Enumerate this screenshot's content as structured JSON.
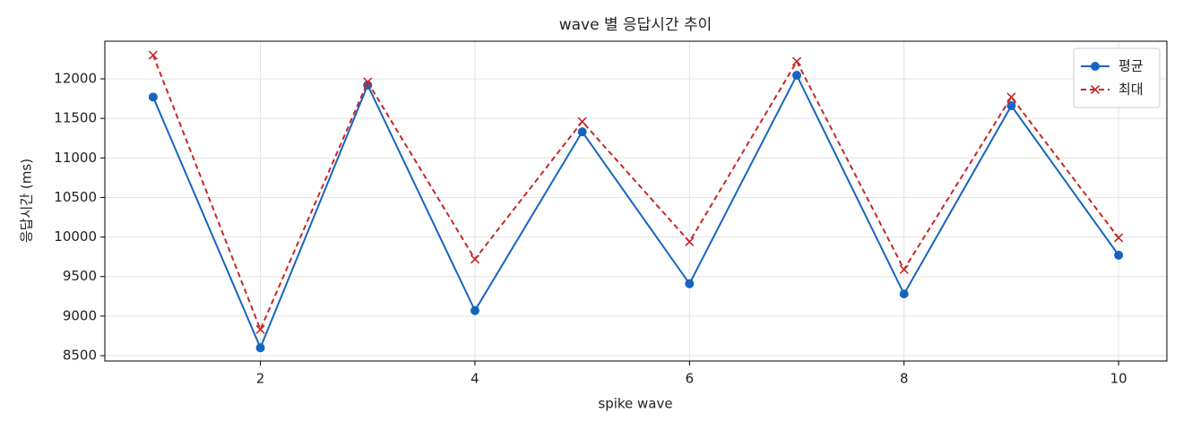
{
  "chart_data": {
    "type": "line",
    "title": "wave 별 응답시간 추이",
    "xlabel": "spike wave",
    "ylabel": "응답시간 (ms)",
    "x": [
      1,
      2,
      3,
      4,
      5,
      6,
      7,
      8,
      9,
      10
    ],
    "series": [
      {
        "name": "평균",
        "color": "#1565c0",
        "marker": "o",
        "linestyle": "solid",
        "values": [
          11770,
          8600,
          11920,
          9070,
          11330,
          9410,
          12045,
          9280,
          11660,
          9770
        ]
      },
      {
        "name": "최대",
        "color": "#c62828",
        "marker": "x",
        "linestyle": "dashed",
        "values": [
          12300,
          8830,
          11960,
          9720,
          11460,
          9940,
          12220,
          9590,
          11770,
          9990
        ]
      }
    ],
    "xlim": [
      0.55,
      10.45
    ],
    "xticks": [
      2,
      4,
      6,
      8,
      10
    ],
    "ylim": [
      8432,
      12476
    ],
    "yticks": [
      8500,
      9000,
      9500,
      10000,
      10500,
      11000,
      11500,
      12000
    ],
    "grid": true,
    "legend": "upper right"
  }
}
